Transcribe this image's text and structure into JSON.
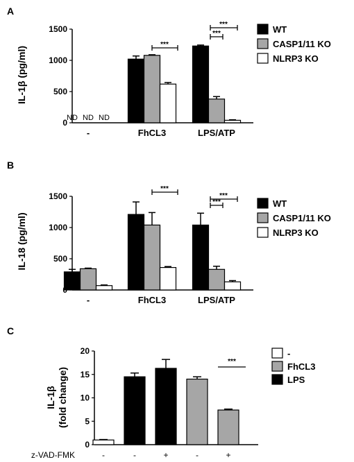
{
  "chart_data": [
    {
      "panel": "A",
      "type": "bar",
      "ylabel": "IL-1β (pg/ml)",
      "ylim": [
        0,
        1500
      ],
      "yticks": [
        "0",
        "500",
        "1000",
        "1500"
      ],
      "categories": [
        "-",
        "FhCL3",
        "LPS/ATP"
      ],
      "series": [
        {
          "name": "WT",
          "values": [
            0,
            1020,
            1230
          ],
          "errors": [
            0,
            50,
            15
          ],
          "color": "#000000"
        },
        {
          "name": "CASP1/11 KO",
          "values": [
            0,
            1080,
            380
          ],
          "errors": [
            0,
            10,
            40
          ],
          "color": "#a6a6a6"
        },
        {
          "name": "NLRP3 KO",
          "values": [
            0,
            620,
            40
          ],
          "errors": [
            0,
            25,
            8
          ],
          "color": "#ffffff"
        }
      ],
      "bar_labels": [
        [
          "ND",
          "ND",
          "ND"
        ],
        [
          "",
          "",
          ""
        ],
        [
          "",
          "",
          ""
        ]
      ],
      "annotations": [
        "***",
        "***",
        "***"
      ]
    },
    {
      "panel": "B",
      "type": "bar",
      "ylabel": "IL-18 (pg/ml)",
      "ylim": [
        0,
        1500
      ],
      "yticks": [
        "0",
        "500",
        "1000",
        "1500"
      ],
      "categories": [
        "-",
        "FhCL3",
        "LPS/ATP"
      ],
      "series": [
        {
          "name": "WT",
          "values": [
            290,
            1210,
            1040
          ],
          "errors": [
            40,
            200,
            190
          ],
          "color": "#000000"
        },
        {
          "name": "CASP1/11 KO",
          "values": [
            340,
            1040,
            330
          ],
          "errors": [
            10,
            200,
            50
          ],
          "color": "#a6a6a6"
        },
        {
          "name": "NLRP3 KO",
          "values": [
            70,
            360,
            130
          ],
          "errors": [
            10,
            15,
            20
          ],
          "color": "#ffffff"
        }
      ],
      "annotations": [
        "***",
        "***",
        "***"
      ]
    },
    {
      "panel": "C",
      "type": "bar",
      "ylabel": "IL-1β",
      "ylabel2": "(fold change)",
      "ylim": [
        0,
        20
      ],
      "yticks": [
        "0",
        "5",
        "10",
        "15",
        "20"
      ],
      "row_label": "z-VAD-FMK",
      "signs": [
        "-",
        "-",
        "+",
        "-",
        "+"
      ],
      "bars": [
        {
          "group": "-",
          "value": 1.0,
          "error": 0.1
        },
        {
          "group": "LPS",
          "value": 14.5,
          "error": 0.8
        },
        {
          "group": "LPS",
          "value": 16.3,
          "error": 1.9
        },
        {
          "group": "FhCL3",
          "value": 14.0,
          "error": 0.5
        },
        {
          "group": "FhCL3",
          "value": 7.4,
          "error": 0.2
        }
      ],
      "legend": [
        {
          "name": "-",
          "color": "#ffffff"
        },
        {
          "name": "FhCL3",
          "color": "#a6a6a6"
        },
        {
          "name": "LPS",
          "color": "#000000"
        }
      ],
      "annotations": [
        "***"
      ]
    }
  ]
}
